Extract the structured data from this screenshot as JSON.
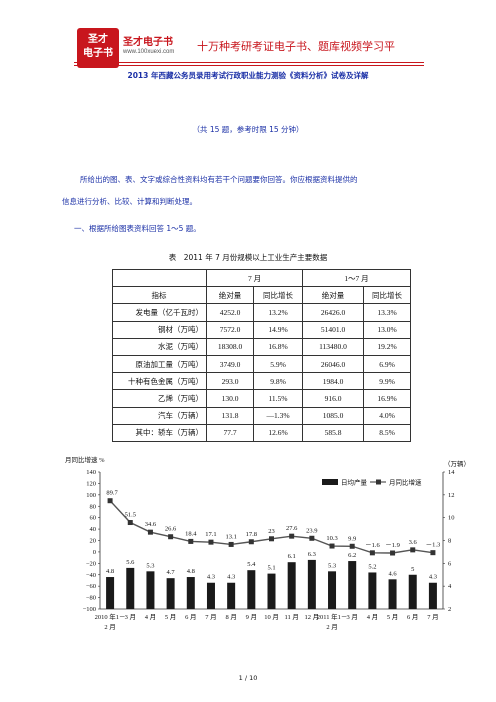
{
  "header": {
    "logo_top": "圣才",
    "logo_bottom": "电子书",
    "brand": "圣才电子书",
    "url": "www.100xuexi.com",
    "slogan": "十万种考研考证电子书、题库视频学习平"
  },
  "doc": {
    "title": "2013 年西藏公务员录用考试行政职业能力测验《资料分析》试卷及详解",
    "meta": "（共 15 题，参考时限 15 分钟）",
    "para1": "所给出的图、表、文字或综合性资料均有若干个问题要你回答。你应根据资料提供的",
    "para2": "信息进行分析、比较、计算和判断处理。",
    "section": "一、根据所给图表资料回答 1～5 题。"
  },
  "table": {
    "title": "表　2011 年 7 月份规模以上工业生产主要数据",
    "group_headers": [
      "7 月",
      "1～7 月"
    ],
    "columns": [
      "指标",
      "绝对量",
      "同比增长",
      "绝对量",
      "同比增长"
    ],
    "rows": [
      [
        "发电量（亿千瓦时）",
        "4252.0",
        "13.2%",
        "26426.0",
        "13.3%"
      ],
      [
        "钢材（万吨）",
        "7572.0",
        "14.9%",
        "51401.0",
        "13.0%"
      ],
      [
        "水泥（万吨）",
        "18308.0",
        "16.8%",
        "113480.0",
        "19.2%"
      ],
      [
        "原油加工量（万吨）",
        "3749.0",
        "5.9%",
        "26046.0",
        "6.9%"
      ],
      [
        "十种有色金属（万吨）",
        "293.0",
        "9.8%",
        "1984.0",
        "9.9%"
      ],
      [
        "乙烯（万吨）",
        "130.0",
        "11.5%",
        "916.0",
        "16.9%"
      ],
      [
        "汽车（万辆）",
        "131.8",
        "—1.3%",
        "1085.0",
        "4.0%"
      ],
      [
        "其中：轿车（万辆）",
        "77.7",
        "12.6%",
        "585.8",
        "8.5%"
      ]
    ]
  },
  "chart_data": {
    "type": "bar",
    "title": "",
    "ylabel": "月同比增速 %",
    "y2label": "（万辆）",
    "ylim": [
      -100,
      140
    ],
    "y2lim": [
      2,
      14
    ],
    "yticks": [
      140,
      120,
      100,
      80,
      60,
      40,
      20,
      0,
      -20,
      -40,
      -60,
      -80,
      -100
    ],
    "y2ticks": [
      14,
      12,
      10,
      8,
      6,
      4,
      2
    ],
    "categories": [
      "2010 年1～2 月",
      "3 月",
      "4 月",
      "5 月",
      "6 月",
      "7 月",
      "8 月",
      "9 月",
      "10 月",
      "11 月",
      "12 月",
      "2011 年1～2 月",
      "3 月",
      "4 月",
      "5 月",
      "6 月",
      "7 月"
    ],
    "x_labels": [
      "2010 年1－",
      "3 月",
      "4 月",
      "5 月",
      "6 月",
      "7 月",
      "8 月",
      "9 月",
      "10 月",
      "11 月",
      "12 月",
      "2011 年1－",
      "3 月",
      "4 月",
      "5 月",
      "6 月",
      "7 月"
    ],
    "x_sublabels": [
      "2 月",
      "2 月"
    ],
    "series": [
      {
        "name": "日均产量",
        "axis": "right",
        "values": [
          4.8,
          5.6,
          5.3,
          4.7,
          4.8,
          4.3,
          4.3,
          5.4,
          5.1,
          6.1,
          6.3,
          5.3,
          6.2,
          5.2,
          4.6,
          5,
          4.3
        ]
      },
      {
        "name": "月同比增速",
        "axis": "left",
        "values": [
          89.7,
          51.5,
          34.6,
          26.6,
          18.4,
          17.1,
          13.1,
          17.8,
          23,
          27.6,
          23.9,
          10.3,
          9.9,
          -1.6,
          -1.9,
          3.6,
          -1.3
        ]
      }
    ],
    "bar_labels": [
      "4.8",
      "5.6",
      "5.3",
      "4.7",
      "4.8",
      "4.3",
      "4.3",
      "5.4",
      "5.1",
      "6.1",
      "6.3",
      "5.3",
      "6.2",
      "5.2",
      "4.6",
      "5",
      "4.3"
    ],
    "line_labels": [
      "89.7",
      "51.5",
      "34.6",
      "26.6",
      "18.4",
      "17.1",
      "13.1",
      "17.8",
      "23",
      "27.6",
      "23.9",
      "10.3",
      "9.9",
      "－1.6",
      "－1.9",
      "3.6",
      "－1.3"
    ],
    "legend": "top-right",
    "grid": false
  },
  "footer": {
    "page": "1 / 10"
  },
  "colors": {
    "brand": "#c8161d",
    "heading": "#1a2fa6"
  }
}
